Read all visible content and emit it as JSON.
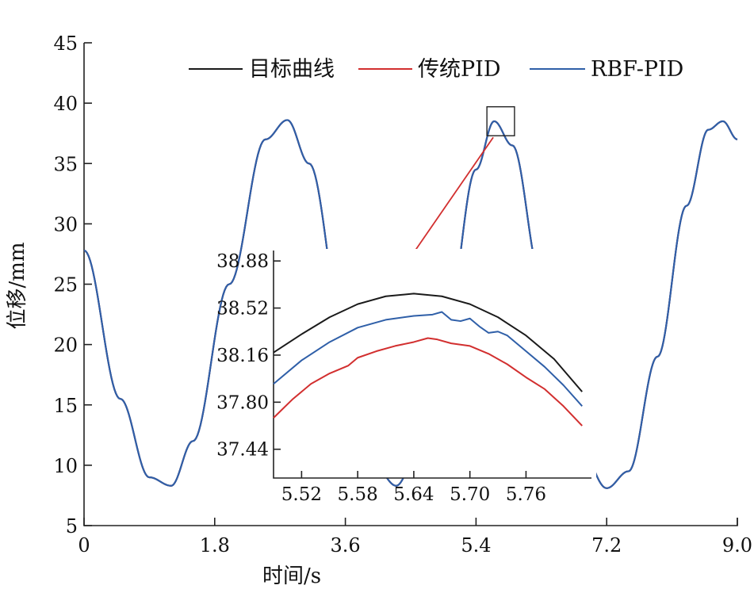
{
  "chart_data": [
    {
      "type": "line",
      "title": "",
      "xlabel": "时间/s",
      "ylabel": "位移/mm",
      "xlim": [
        0,
        9.0
      ],
      "ylim": [
        5,
        45
      ],
      "xticks": [
        0,
        1.8,
        3.6,
        5.4,
        7.2,
        9.0
      ],
      "xtick_labels": [
        "0",
        "1.8",
        "3.6",
        "5.4",
        "7.2",
        "9.0"
      ],
      "yticks": [
        5,
        10,
        15,
        20,
        25,
        30,
        35,
        40,
        45
      ],
      "ytick_labels": [
        "5",
        "10",
        "15",
        "20",
        "25",
        "30",
        "35",
        "40",
        "45"
      ],
      "grid": false,
      "legend_position": "top-right",
      "x": [
        0,
        0.5,
        0.9,
        1.2,
        1.5,
        2.0,
        2.5,
        2.8,
        3.1,
        3.6,
        4.0,
        4.3,
        4.6,
        5.0,
        5.4,
        5.65,
        5.9,
        6.3,
        6.8,
        7.2,
        7.5,
        7.9,
        8.3,
        8.6,
        8.8,
        9.0
      ],
      "series": [
        {
          "name": "目标曲线",
          "color": "#1a1a1a",
          "values": [
            27.8,
            15.5,
            9.0,
            8.3,
            12.0,
            25.0,
            37.0,
            38.6,
            35.0,
            20.5,
            10.0,
            8.3,
            11.0,
            22.0,
            34.5,
            38.5,
            36.5,
            25.5,
            12.0,
            8.1,
            9.5,
            19.0,
            31.5,
            37.8,
            38.5,
            37.0
          ]
        },
        {
          "name": "传统PID",
          "color": "#d22f2f",
          "values": [
            27.8,
            15.5,
            9.0,
            8.3,
            12.0,
            25.0,
            37.0,
            38.6,
            35.0,
            20.5,
            10.0,
            8.3,
            11.0,
            22.0,
            34.5,
            38.5,
            36.5,
            25.5,
            12.0,
            8.1,
            9.5,
            19.0,
            31.5,
            37.8,
            38.5,
            37.0
          ]
        },
        {
          "name": "RBF-PID",
          "color": "#2f5fa8",
          "values": [
            27.8,
            15.5,
            9.0,
            8.3,
            12.0,
            25.0,
            37.0,
            38.6,
            35.0,
            20.5,
            10.0,
            8.3,
            11.0,
            22.0,
            34.5,
            38.5,
            36.5,
            25.5,
            12.0,
            8.1,
            9.5,
            19.0,
            31.5,
            37.8,
            38.5,
            37.0
          ]
        }
      ],
      "zoom_box": {
        "x": [
          5.55,
          5.93
        ],
        "y": [
          37.3,
          39.7
        ]
      }
    },
    {
      "type": "line",
      "title": "",
      "xlabel": "",
      "ylabel": "",
      "xlim": [
        5.49,
        5.83
      ],
      "ylim": [
        37.22,
        38.96
      ],
      "xticks": [
        5.52,
        5.58,
        5.64,
        5.7,
        5.76
      ],
      "xtick_labels": [
        "5.52",
        "5.58",
        "5.64",
        "5.70",
        "5.76"
      ],
      "yticks": [
        37.44,
        37.8,
        38.16,
        38.52,
        38.88
      ],
      "ytick_labels": [
        "37.44",
        "37.80",
        "38.16",
        "38.52",
        "38.88"
      ],
      "grid": false,
      "series": [
        {
          "name": "目标曲线",
          "color": "#1a1a1a",
          "x": [
            5.49,
            5.52,
            5.55,
            5.58,
            5.61,
            5.64,
            5.67,
            5.7,
            5.73,
            5.76,
            5.79,
            5.82
          ],
          "values": [
            38.18,
            38.32,
            38.45,
            38.55,
            38.61,
            38.63,
            38.61,
            38.55,
            38.45,
            38.31,
            38.13,
            37.88
          ]
        },
        {
          "name": "传统PID",
          "color": "#d22f2f",
          "x": [
            5.49,
            5.51,
            5.53,
            5.55,
            5.57,
            5.58,
            5.6,
            5.62,
            5.64,
            5.655,
            5.665,
            5.68,
            5.7,
            5.72,
            5.74,
            5.76,
            5.78,
            5.8,
            5.82
          ],
          "values": [
            37.68,
            37.82,
            37.94,
            38.02,
            38.08,
            38.14,
            38.19,
            38.23,
            38.26,
            38.29,
            38.28,
            38.25,
            38.23,
            38.17,
            38.09,
            37.99,
            37.9,
            37.77,
            37.62
          ]
        },
        {
          "name": "RBF-PID",
          "color": "#2f5fa8",
          "x": [
            5.49,
            5.52,
            5.55,
            5.58,
            5.61,
            5.64,
            5.66,
            5.67,
            5.68,
            5.69,
            5.7,
            5.71,
            5.72,
            5.73,
            5.74,
            5.76,
            5.78,
            5.8,
            5.82
          ],
          "values": [
            37.94,
            38.12,
            38.26,
            38.37,
            38.43,
            38.46,
            38.47,
            38.49,
            38.43,
            38.42,
            38.44,
            38.38,
            38.33,
            38.34,
            38.31,
            38.19,
            38.07,
            37.93,
            37.77
          ]
        }
      ]
    }
  ]
}
